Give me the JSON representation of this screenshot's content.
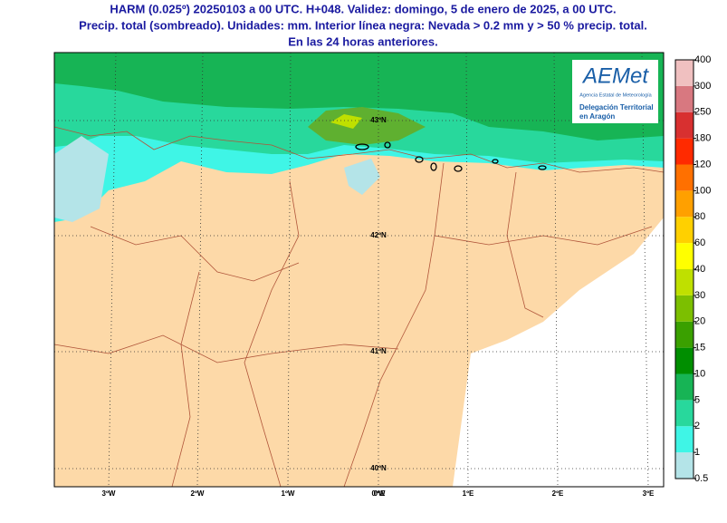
{
  "header": {
    "lines": [
      "HARM (0.025º) 20250103 a 00 UTC. H+048. Validez: domingo, 5 de enero de 2025, a 00 UTC.",
      "Precip. total (sombreado). Unidades: mm. Interior línea negra: Nevada > 0.2 mm y > 50 % precip. total.",
      "En las 24 horas anteriores."
    ]
  },
  "map": {
    "lat_labels": [
      "43ºN",
      "42ºN",
      "41ºN",
      "40ºN"
    ],
    "lon_labels": [
      "3ºW",
      "2ºW",
      "1ºW",
      "0ºW",
      "0ºE",
      "1ºE",
      "2ºE",
      "3ºE"
    ]
  },
  "logo": {
    "brand": "AEMet",
    "agency": "Agencia Estatal de Meteorología",
    "delegation_1": "Delegación Territorial",
    "delegation_2": "en Aragón"
  },
  "colorbar": {
    "labels": [
      "0.5",
      "1",
      "2",
      "5",
      "10",
      "15",
      "20",
      "30",
      "40",
      "60",
      "80",
      "100",
      "120",
      "180",
      "250",
      "300",
      "400"
    ],
    "colors": [
      "#b4e4e8",
      "#3ff5e6",
      "#28d89c",
      "#17b455",
      "#008e00",
      "#3aa000",
      "#7cbf00",
      "#bfe000",
      "#ffff00",
      "#ffd000",
      "#ffa000",
      "#ff7000",
      "#ff2a00",
      "#d83030",
      "#d87880",
      "#f0c0c0"
    ]
  }
}
